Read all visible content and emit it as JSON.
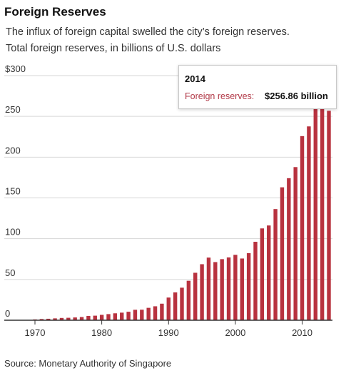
{
  "chart_data": {
    "type": "bar",
    "title": "Foreign Reserves",
    "subtitle": [
      "The influx of foreign capital swelled the city’s foreign reserves.",
      "Total foreign reserves, in billions of U.S. dollars"
    ],
    "xlabel": "",
    "ylabel": "",
    "x": [
      1970,
      1971,
      1972,
      1973,
      1974,
      1975,
      1976,
      1977,
      1978,
      1979,
      1980,
      1981,
      1982,
      1983,
      1984,
      1985,
      1986,
      1987,
      1988,
      1989,
      1990,
      1991,
      1992,
      1993,
      1994,
      1995,
      1996,
      1997,
      1998,
      1999,
      2000,
      2001,
      2002,
      2003,
      2004,
      2005,
      2006,
      2007,
      2008,
      2009,
      2010,
      2011,
      2012,
      2013,
      2014
    ],
    "values": [
      1.0,
      1.5,
      1.8,
      2.3,
      2.8,
      3.0,
      3.4,
      3.9,
      5.3,
      5.6,
      6.6,
      7.5,
      8.5,
      9.3,
      10.4,
      12.8,
      12.9,
      15.2,
      17.1,
      20.3,
      27.8,
      34.1,
      39.9,
      48.4,
      58.2,
      68.7,
      76.8,
      71.3,
      74.9,
      77.0,
      80.2,
      75.7,
      82.3,
      96.2,
      112.6,
      116.2,
      136.3,
      163.0,
      174.2,
      187.8,
      225.8,
      237.7,
      259.3,
      273.1,
      256.86
    ],
    "ylim": [
      0,
      300
    ],
    "yticks": [
      0,
      50,
      100,
      150,
      200,
      250,
      300
    ],
    "ytick_labels": [
      "0",
      "50",
      "100",
      "150",
      "200",
      "250",
      "$300"
    ],
    "xticks": [
      1970,
      1980,
      1990,
      2000,
      2010
    ],
    "xtick_labels": [
      "1970",
      "1980",
      "1990",
      "2000",
      "2010"
    ],
    "grid": true,
    "bar_color": "#b8323f",
    "tooltip": {
      "year": "2014",
      "label": "Foreign reserves:",
      "value": "$256.86 billion"
    },
    "source": "Source: Monetary Authority of Singapore"
  }
}
